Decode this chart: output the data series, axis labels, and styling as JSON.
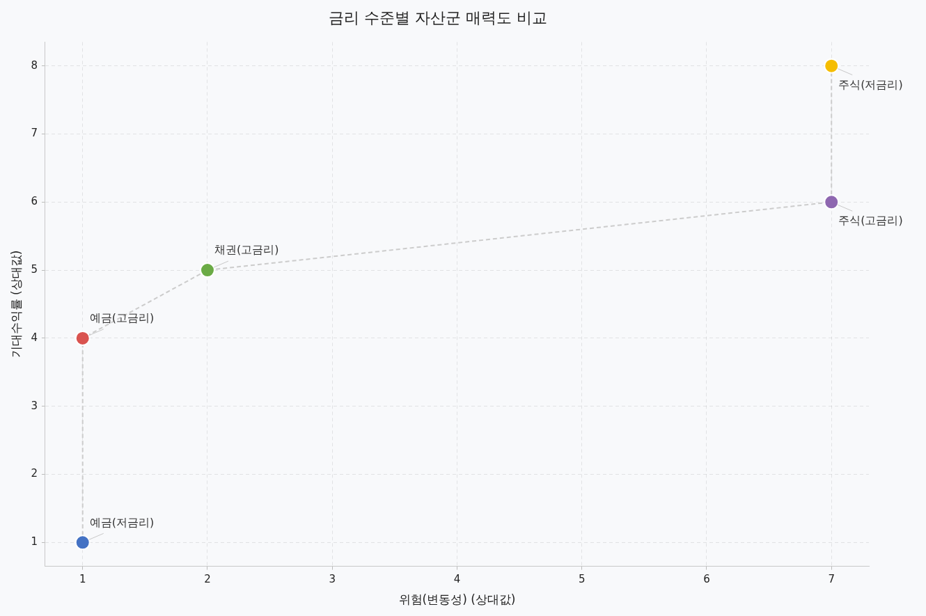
{
  "chart_data": {
    "type": "scatter",
    "title": "금리 수준별 자산군 매력도 비교",
    "xlabel": "위험(변동성) (상대값)",
    "ylabel": "기대수익률 (상대값)",
    "series": [
      {
        "type": "line",
        "color": "#cccccc",
        "line_style": "dashed",
        "marker": "none",
        "x": [
          1,
          1,
          2,
          7,
          7
        ],
        "values": [
          1,
          4,
          5,
          6,
          8
        ]
      },
      {
        "type": "scatter",
        "marker": "circle",
        "colors": [
          "#4472c4",
          "#d9534f",
          "#6aaa45",
          "#8e67b0",
          "#f5bd00"
        ],
        "x": [
          1,
          1,
          2,
          7,
          7
        ],
        "values": [
          1,
          4,
          5,
          6,
          8
        ]
      }
    ],
    "annotations": [
      {
        "text": "예금(저금리)",
        "x": 1,
        "y": 1
      },
      {
        "text": "예금(고금리)",
        "x": 1,
        "y": 4
      },
      {
        "text": "채권(고금리)",
        "x": 2,
        "y": 5
      },
      {
        "text": "주식(고금리)",
        "x": 7,
        "y": 6
      },
      {
        "text": "주식(저금리)",
        "x": 7,
        "y": 8
      }
    ],
    "xlim": [
      0.7,
      7.3
    ],
    "xticks": [
      1,
      2,
      3,
      4,
      5,
      6,
      7
    ],
    "ylim": [
      0.65,
      8.35
    ],
    "yticks": [
      1,
      2,
      3,
      4,
      5,
      6,
      7,
      8
    ],
    "grid": true,
    "legend": false
  }
}
